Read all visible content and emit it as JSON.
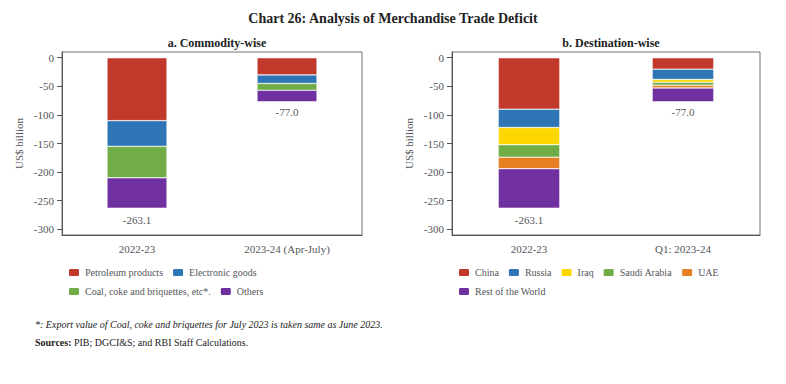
{
  "title": "Chart 26: Analysis of Merchandise Trade Deficit",
  "footnote": "*: Export value of Coal, coke and briquettes for July 2023 is taken same as June 2023.",
  "source": "Sources: PIB; DGCI&S; and RBI Staff Calculations.",
  "chart_data": [
    {
      "type": "bar",
      "stacked": true,
      "title": "a. Commodity-wise",
      "ylabel": "US$ billion",
      "categories": [
        "2022-23",
        "2023-24 (Apr-July)"
      ],
      "series": [
        {
          "name": "Petroleum products",
          "color": "#c0392b",
          "values": [
            -110.0,
            -30.0
          ]
        },
        {
          "name": "Electronic goods",
          "color": "#2e75b6",
          "values": [
            -45.0,
            -15.0
          ]
        },
        {
          "name": "Coal, coke and briquettes, etc*.",
          "color": "#70ad47",
          "values": [
            -55.0,
            -12.0
          ]
        },
        {
          "name": "Others",
          "color": "#7030a0",
          "values": [
            -53.1,
            -20.0
          ]
        }
      ],
      "annotations": [
        {
          "category": "2022-23",
          "y": -272,
          "text": "-263.1"
        },
        {
          "category": "2023-24 (Apr-July)",
          "y": -84,
          "text": "-77.0"
        }
      ],
      "ylim": [
        -310,
        10
      ],
      "yticks": [
        0,
        -50,
        -100,
        -150,
        -200,
        -250,
        -300
      ],
      "grid": false,
      "legend": "bottom"
    },
    {
      "type": "bar",
      "stacked": true,
      "title": "b. Destination-wise",
      "ylabel": "US$ billion",
      "categories": [
        "2022-23",
        "Q1: 2023-24"
      ],
      "series": [
        {
          "name": "China",
          "color": "#c0392b",
          "values": [
            -90.0,
            -20.0
          ]
        },
        {
          "name": "Russia",
          "color": "#2e75b6",
          "values": [
            -32.0,
            -18.0
          ]
        },
        {
          "name": "Iraq",
          "color": "#ffd700",
          "values": [
            -30.0,
            -5.0
          ]
        },
        {
          "name": "Saudi Arabia",
          "color": "#70ad47",
          "values": [
            -22.0,
            -5.0
          ]
        },
        {
          "name": "UAE",
          "color": "#e67e22",
          "values": [
            -20.0,
            -5.0
          ]
        },
        {
          "name": "Rest of the World",
          "color": "#7030a0",
          "values": [
            -69.1,
            -24.0
          ]
        }
      ],
      "annotations": [
        {
          "category": "2022-23",
          "y": -272,
          "text": "-263.1"
        },
        {
          "category": "Q1: 2023-24",
          "y": -84,
          "text": "-77.0"
        }
      ],
      "ylim": [
        -310,
        10
      ],
      "yticks": [
        0,
        -50,
        -100,
        -150,
        -200,
        -250,
        -300
      ],
      "grid": false,
      "legend": "bottom"
    }
  ]
}
